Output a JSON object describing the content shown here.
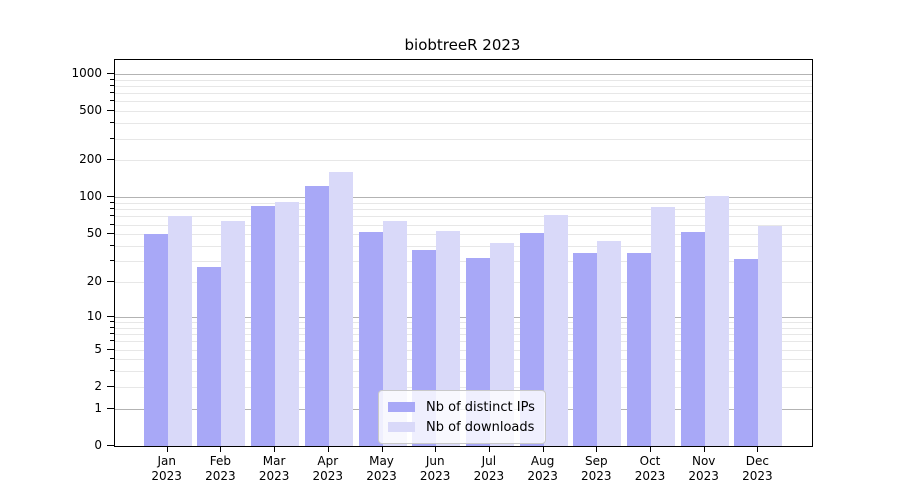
{
  "chart_data": {
    "type": "bar",
    "title": "biobtreeR 2023",
    "categories": [
      "Jan",
      "Feb",
      "Mar",
      "Apr",
      "May",
      "Jun",
      "Jul",
      "Aug",
      "Sep",
      "Oct",
      "Nov",
      "Dec"
    ],
    "category_year_label": "2023",
    "series": [
      {
        "name": "Nb of distinct IPs",
        "color": "#a8a8f7",
        "values": [
          50,
          27,
          85,
          124,
          52,
          37,
          32,
          51,
          35,
          35,
          52,
          31
        ]
      },
      {
        "name": "Nb of downloads",
        "color": "#d9d9f9",
        "values": [
          70,
          64,
          92,
          160,
          64,
          53,
          42,
          72,
          44,
          84,
          102,
          59
        ]
      }
    ],
    "yaxis": {
      "scale": "log1p",
      "ylim": [
        0,
        1000
      ],
      "ticks": [
        0,
        1,
        2,
        5,
        10,
        20,
        50,
        100,
        200,
        500,
        1000
      ],
      "minor_ticks": [
        3,
        4,
        6,
        7,
        8,
        9,
        30,
        40,
        60,
        70,
        80,
        90,
        300,
        400,
        600,
        700,
        800,
        900
      ]
    },
    "grid": {
      "major_at": [
        1,
        10,
        100,
        1000
      ],
      "major_color": "#b3b3b3",
      "minor_color": "#e7e7e7"
    },
    "legend": {
      "position": "inside-bottom-center"
    },
    "colors": {
      "axis": "#000000",
      "background": "#ffffff"
    }
  }
}
